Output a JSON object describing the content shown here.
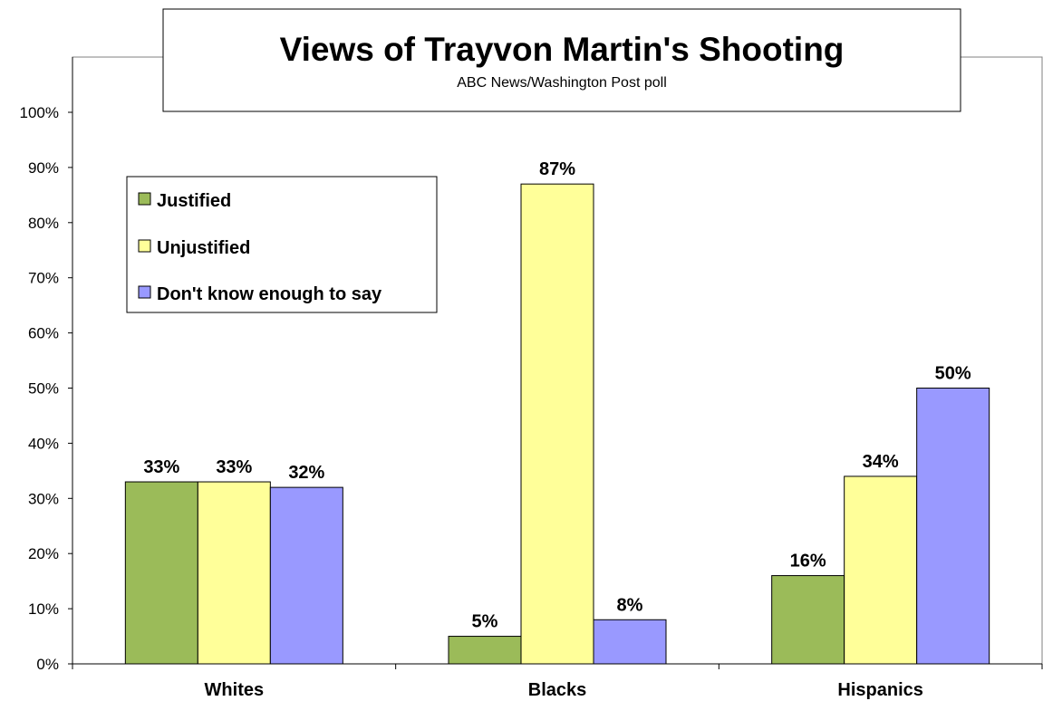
{
  "chart_data": {
    "type": "bar",
    "title": "Views of Trayvon Martin's Shooting",
    "subtitle": "ABC News/Washington Post poll",
    "categories": [
      "Whites",
      "Blacks",
      "Hispanics"
    ],
    "series": [
      {
        "name": "Justified",
        "values": [
          33,
          5,
          16
        ],
        "color": "#9bbb59",
        "labels": [
          "33%",
          "5%",
          "16%"
        ]
      },
      {
        "name": "Unjustified",
        "values": [
          33,
          87,
          34
        ],
        "color": "#ffff99",
        "labels": [
          "33%",
          "87%",
          "34%"
        ]
      },
      {
        "name": "Don't know enough to say",
        "values": [
          32,
          8,
          50
        ],
        "color": "#9999ff",
        "labels": [
          "32%",
          "8%",
          "50%"
        ]
      }
    ],
    "ylim": [
      0,
      100
    ],
    "yticks": [
      "0%",
      "10%",
      "20%",
      "30%",
      "40%",
      "50%",
      "60%",
      "70%",
      "80%",
      "90%",
      "100%"
    ],
    "grid": false,
    "legend_position": "top-left"
  }
}
